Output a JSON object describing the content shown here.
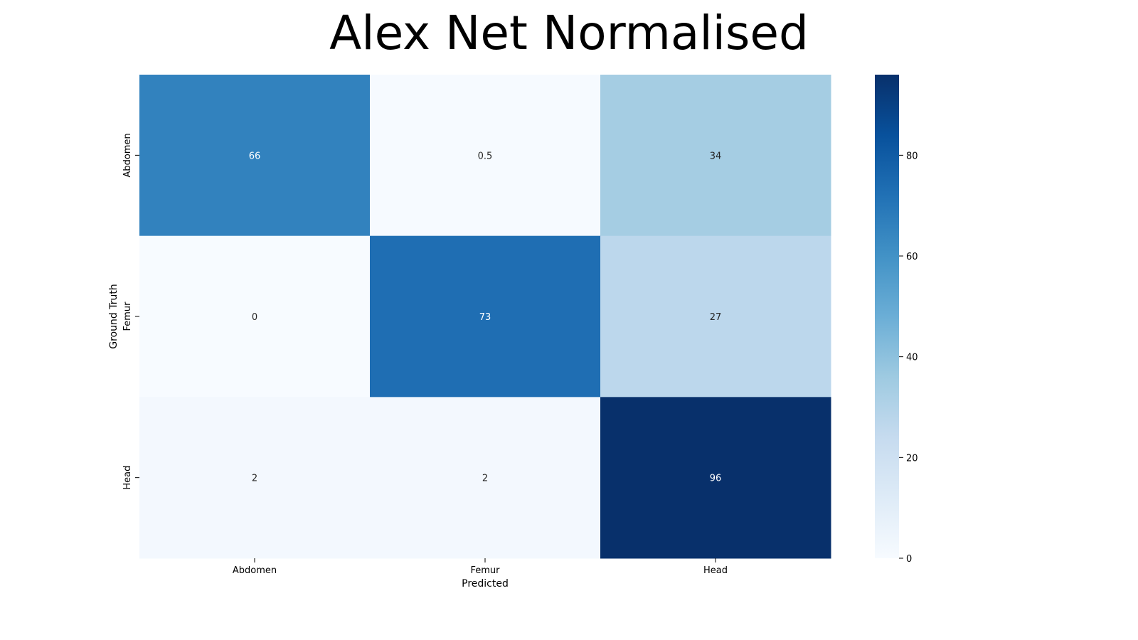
{
  "chart_data": {
    "type": "heatmap",
    "title": "Alex Net Normalised",
    "xlabel": "Predicted",
    "ylabel": "Ground Truth",
    "x_categories": [
      "Abdomen",
      "Femur",
      "Head"
    ],
    "y_categories": [
      "Abdomen",
      "Femur",
      "Head"
    ],
    "values": [
      [
        66,
        0.5,
        34
      ],
      [
        0,
        73,
        27
      ],
      [
        2,
        2,
        96
      ]
    ],
    "annotations": [
      [
        "66",
        "0.5",
        "34"
      ],
      [
        "0",
        "73",
        "27"
      ],
      [
        "2",
        "2",
        "96"
      ]
    ],
    "colormap": "Blues",
    "colorbar": {
      "range": [
        0,
        96
      ],
      "ticks": [
        0,
        20,
        40,
        60,
        80
      ],
      "tick_labels": [
        "0",
        "20",
        "40",
        "60",
        "80"
      ]
    },
    "grid": false
  }
}
